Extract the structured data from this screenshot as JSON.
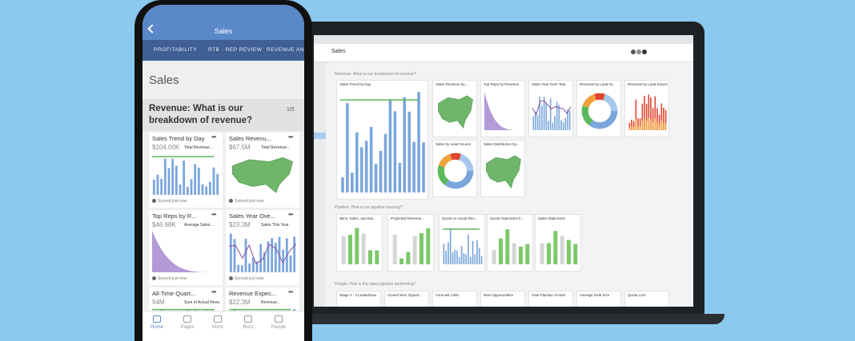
{
  "phone": {
    "nav_title": "Sales",
    "tabs": [
      "PROFITABILITY",
      "RTB - REP REVIEW",
      "REVENUE ANA"
    ],
    "page_title": "Sales",
    "section": {
      "title": "Revenue: What is our breakdown of revenue?",
      "page": "1/5"
    },
    "cards": [
      {
        "title": "Sales Trend by Day",
        "value": "$104.00K",
        "label": "Total Revenue...",
        "synced": "Synced just now"
      },
      {
        "title": "Sales Revenu...",
        "value": "$67.5M",
        "label": "Total Revenue...",
        "synced": "Synced just now"
      },
      {
        "title": "Top Reps by R...",
        "value": "$46.68K",
        "label": "Average Sales...",
        "synced": "Synced just now"
      },
      {
        "title": "Sales Year Ove...",
        "value": "$23.3M",
        "label": "Sales This Year",
        "synced": "Synced just now"
      },
      {
        "title": "All-Time Quart...",
        "value": "94M",
        "label": "Sum of Actual Reve..."
      },
      {
        "title": "Revenue Expec...",
        "value": "$22.3M",
        "label": "Revenue..."
      }
    ],
    "nav": [
      "Home",
      "Pages",
      "More",
      "Buzz",
      "People"
    ]
  },
  "laptop": {
    "app_title": "Sales",
    "sections": [
      {
        "title": "Revenue: What is our breakdown of revenue?",
        "cards": [
          "Sales Trend by Day",
          "Sales Revenue by...",
          "Top Reps by Revenue",
          "Sales Year Over Year",
          "Revenue by Lead Ty...",
          "Revenue by Lead Source",
          "Sales by Lead Source",
          "Sales Distribution by..."
        ]
      },
      {
        "title": "Pipeline: How is our pipeline tracking?",
        "cards": [
          "Wins, Sales, and Ear...",
          "Projected Revenue...",
          "Quota vs Actual Rev...",
          "Quota Attainment b...",
          "Sales Attainment"
        ]
      },
      {
        "title": "People: How is the sales pipeline performing?",
        "cards": [
          "Stage 2 - 3 Leaderboar",
          "Closed Won Opport...",
          "Forecast Calls",
          "New Opportunities",
          "Total Pipeline Closed",
          "Average Deal Size",
          "Quota Lost"
        ]
      }
    ]
  }
}
